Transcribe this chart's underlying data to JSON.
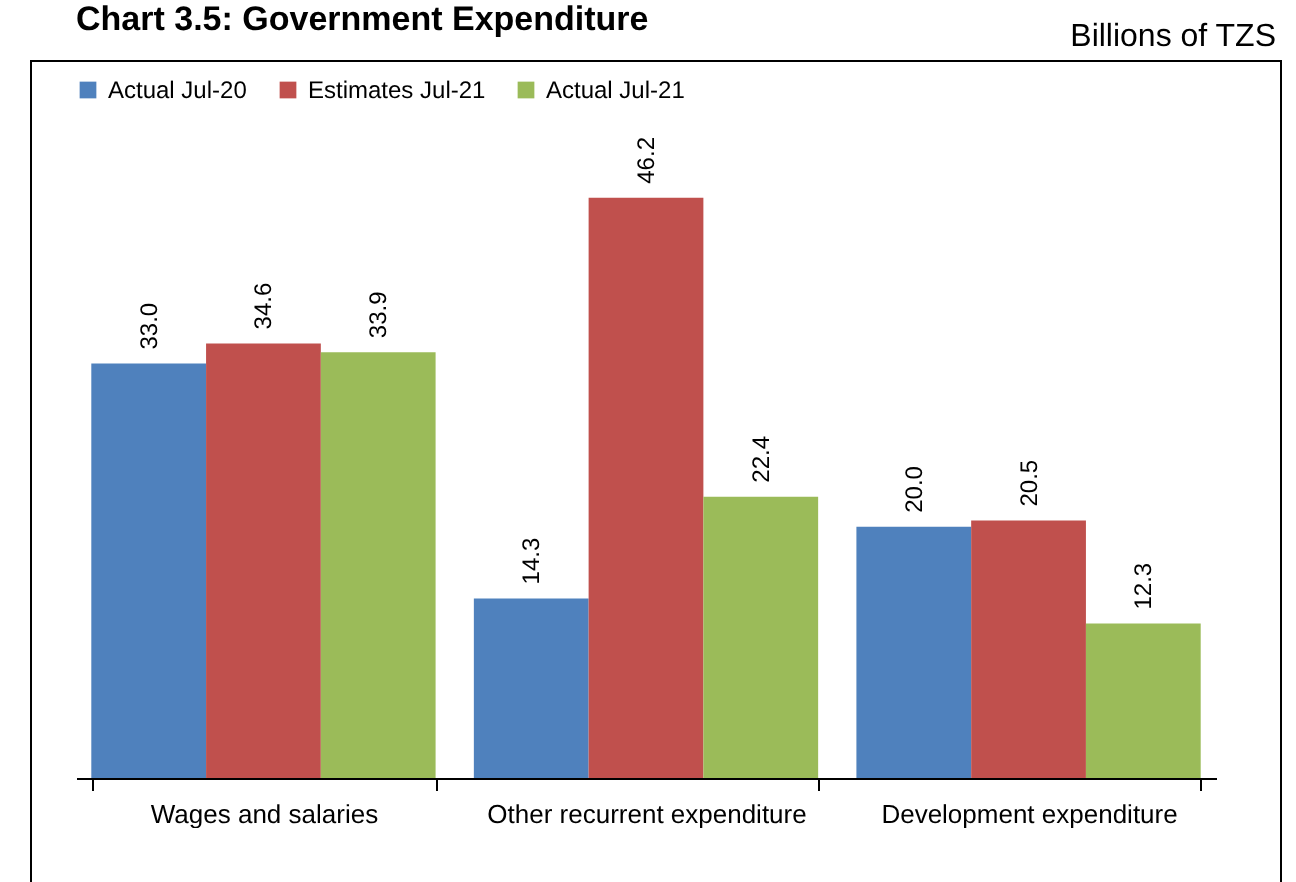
{
  "chart_data": {
    "type": "bar",
    "title": "Chart 3.5: Government Expenditure",
    "subtitle": "Billions of TZS",
    "categories": [
      "Wages and salaries",
      "Other recurrent expenditure",
      "Development expenditure"
    ],
    "series": [
      {
        "name": "Actual Jul-20",
        "color": "#4f81bd",
        "values": [
          33.0,
          14.3,
          20.0
        ],
        "value_labels": [
          "33.0",
          "14.3",
          "20.0"
        ]
      },
      {
        "name": "Estimates Jul-21",
        "color": "#c0504d",
        "values": [
          34.6,
          46.2,
          20.5
        ],
        "value_labels": [
          "34.6",
          "46.2",
          "20.5"
        ]
      },
      {
        "name": "Actual Jul-21",
        "color": "#9bbb59",
        "values": [
          33.9,
          22.4,
          12.3
        ],
        "value_labels": [
          "33.9",
          "22.4",
          "12.3"
        ]
      }
    ],
    "legend": "top",
    "tick_labels": "x"
  }
}
